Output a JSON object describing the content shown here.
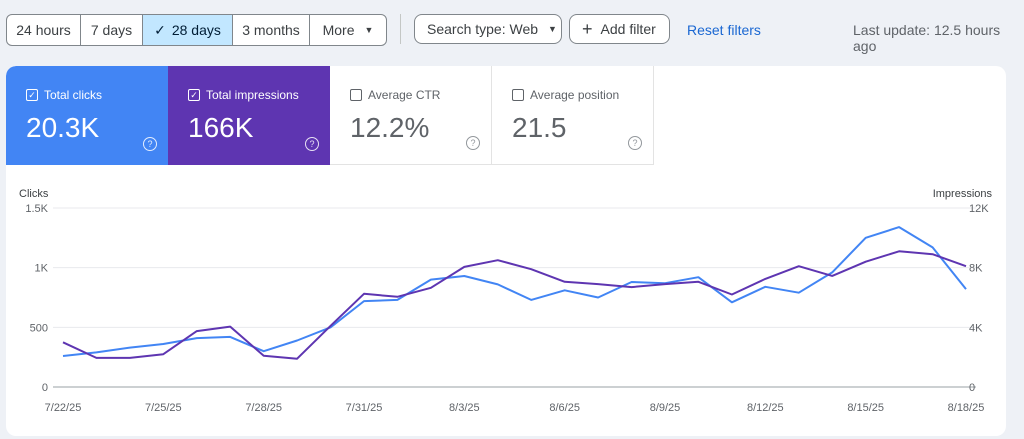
{
  "toolbar": {
    "date_ranges": [
      {
        "label": "24 hours",
        "active": false
      },
      {
        "label": "7 days",
        "active": false
      },
      {
        "label": "28 days",
        "active": true
      },
      {
        "label": "3 months",
        "active": false
      },
      {
        "label": "More",
        "active": false
      }
    ],
    "search_type": "Search type: Web",
    "add_filter": "Add filter",
    "reset_filters": "Reset filters",
    "last_update": "Last update: 12.5 hours ago"
  },
  "metrics": [
    {
      "label": "Total clicks",
      "value": "20.3K",
      "checked": true,
      "color": "#4285f4"
    },
    {
      "label": "Total impressions",
      "value": "166K",
      "checked": true,
      "color": "#5e35b1"
    },
    {
      "label": "Average CTR",
      "value": "12.2%",
      "checked": false
    },
    {
      "label": "Average position",
      "value": "21.5",
      "checked": false
    }
  ],
  "chart_data": {
    "type": "line",
    "left_axis_title": "Clicks",
    "right_axis_title": "Impressions",
    "left_ticks": [
      "1.5K",
      "1K",
      "500",
      "0"
    ],
    "right_ticks": [
      "12K",
      "8K",
      "4K",
      "0"
    ],
    "ylim_left": [
      0,
      1500
    ],
    "ylim_right": [
      0,
      12000
    ],
    "x_labels": [
      "7/22/25",
      "7/25/25",
      "7/28/25",
      "7/31/25",
      "8/3/25",
      "8/6/25",
      "8/9/25",
      "8/12/25",
      "8/15/25",
      "8/18/25"
    ],
    "x": [
      "7/22/25",
      "7/23/25",
      "7/24/25",
      "7/25/25",
      "7/26/25",
      "7/27/25",
      "7/28/25",
      "7/29/25",
      "7/30/25",
      "7/31/25",
      "8/1/25",
      "8/2/25",
      "8/3/25",
      "8/4/25",
      "8/5/25",
      "8/6/25",
      "8/7/25",
      "8/8/25",
      "8/9/25",
      "8/10/25",
      "8/11/25",
      "8/12/25",
      "8/13/25",
      "8/14/25",
      "8/15/25",
      "8/16/25",
      "8/17/25",
      "8/18/25"
    ],
    "series": [
      {
        "name": "Total clicks",
        "axis": "left",
        "color": "#4285f4",
        "values": [
          260,
          290,
          330,
          360,
          410,
          420,
          300,
          390,
          500,
          720,
          730,
          900,
          930,
          860,
          730,
          810,
          750,
          880,
          870,
          920,
          710,
          840,
          790,
          960,
          1250,
          1340,
          1170,
          820
        ]
      },
      {
        "name": "Total impressions",
        "axis": "right",
        "color": "#5e35b1",
        "values": [
          3000,
          1950,
          1950,
          2200,
          3750,
          4050,
          2100,
          1900,
          4100,
          6250,
          6050,
          6650,
          8050,
          8500,
          7900,
          7050,
          6900,
          6700,
          6900,
          7050,
          6200,
          7250,
          8100,
          7450,
          8400,
          9100,
          8900,
          8100
        ]
      }
    ]
  }
}
